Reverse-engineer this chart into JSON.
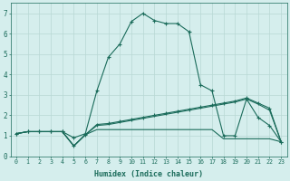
{
  "xlabel": "Humidex (Indice chaleur)",
  "xlim": [
    -0.5,
    23.5
  ],
  "ylim": [
    0,
    7.5
  ],
  "xticks": [
    0,
    1,
    2,
    3,
    4,
    5,
    6,
    7,
    8,
    9,
    10,
    11,
    12,
    13,
    14,
    15,
    16,
    17,
    18,
    19,
    20,
    21,
    22,
    23
  ],
  "yticks": [
    0,
    1,
    2,
    3,
    4,
    5,
    6,
    7
  ],
  "bg_color": "#d5eeed",
  "line_color": "#1a6b5a",
  "grid_color": "#b8d8d4",
  "curve1_x": [
    0,
    1,
    2,
    3,
    4,
    5,
    6,
    7,
    8,
    9,
    10,
    11,
    12,
    13,
    14,
    15,
    16,
    17,
    18,
    19,
    20,
    21,
    22,
    23
  ],
  "curve1_y": [
    1.1,
    1.2,
    1.2,
    1.2,
    1.2,
    0.9,
    1.1,
    3.2,
    4.85,
    5.5,
    6.6,
    7.0,
    6.65,
    6.5,
    6.5,
    6.1,
    3.5,
    3.2,
    1.0,
    1.0,
    2.8,
    1.9,
    1.5,
    0.7
  ],
  "curve2_x": [
    0,
    1,
    2,
    3,
    4,
    5,
    6,
    7,
    8,
    9,
    10,
    11,
    12,
    13,
    14,
    15,
    16,
    17,
    18,
    19,
    20,
    21,
    22,
    23
  ],
  "curve2_y": [
    1.1,
    1.2,
    1.2,
    1.2,
    1.2,
    0.5,
    1.05,
    1.55,
    1.6,
    1.7,
    1.8,
    1.9,
    2.0,
    2.1,
    2.2,
    2.3,
    2.4,
    2.5,
    2.6,
    2.7,
    2.85,
    2.6,
    2.35,
    0.7
  ],
  "curve3_x": [
    0,
    1,
    2,
    3,
    4,
    5,
    6,
    7,
    8,
    9,
    10,
    11,
    12,
    13,
    14,
    15,
    16,
    17,
    18,
    19,
    20,
    21,
    22,
    23
  ],
  "curve3_y": [
    1.1,
    1.2,
    1.2,
    1.2,
    1.2,
    0.5,
    1.05,
    1.5,
    1.55,
    1.65,
    1.75,
    1.85,
    1.95,
    2.05,
    2.15,
    2.25,
    2.35,
    2.45,
    2.55,
    2.65,
    2.8,
    2.55,
    2.25,
    0.7
  ],
  "curve4_x": [
    0,
    1,
    2,
    3,
    4,
    5,
    6,
    7,
    8,
    9,
    10,
    11,
    12,
    13,
    14,
    15,
    16,
    17,
    18,
    19,
    20,
    21,
    22,
    23
  ],
  "curve4_y": [
    1.1,
    1.2,
    1.2,
    1.2,
    1.2,
    0.5,
    1.05,
    1.3,
    1.3,
    1.3,
    1.3,
    1.3,
    1.3,
    1.3,
    1.3,
    1.3,
    1.3,
    1.3,
    0.85,
    0.85,
    0.85,
    0.85,
    0.85,
    0.7
  ]
}
